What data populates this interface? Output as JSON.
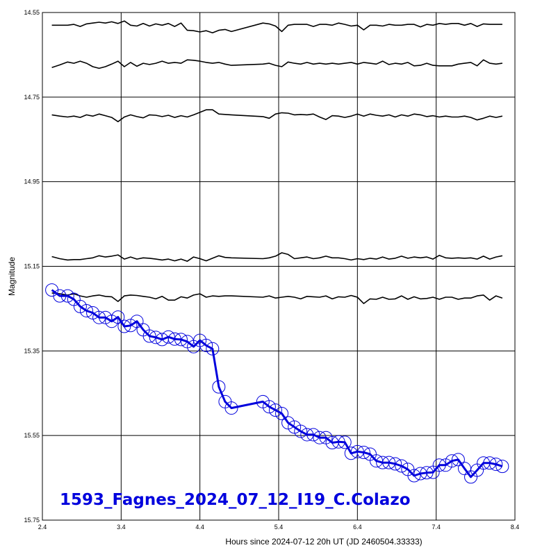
{
  "chart_data": {
    "type": "line",
    "xlabel": "Hours since 2024-07-12 20h UT (JD 2460504.33333)",
    "ylabel": "Magnitude",
    "xlim": [
      2.4,
      8.4
    ],
    "ylim": [
      14.55,
      15.75
    ],
    "y_inverted": true,
    "grid": true,
    "x_ticks": [
      "2.4",
      "3.4",
      "4.4",
      "5.4",
      "6.4",
      "7.4",
      "8.4"
    ],
    "y_ticks": [
      "14.55",
      "14.75",
      "14.95",
      "15.15",
      "15.35",
      "15.55",
      "15.75"
    ],
    "annotation": "1593_Fagnes_2024_07_12_I19_C.Colazo",
    "colors": {
      "target": "#0000dd",
      "comparison": "#000000",
      "grid": "#000000"
    },
    "x": [
      2.52,
      2.62,
      2.72,
      2.8,
      2.88,
      2.96,
      3.04,
      3.12,
      3.2,
      3.28,
      3.36,
      3.44,
      3.52,
      3.6,
      3.68,
      3.76,
      3.84,
      3.92,
      4.0,
      4.08,
      4.16,
      4.24,
      4.32,
      4.4,
      4.48,
      4.56,
      4.64,
      4.72,
      4.8,
      5.2,
      5.28,
      5.36,
      5.44,
      5.52,
      5.6,
      5.68,
      5.76,
      5.84,
      5.92,
      6.0,
      6.08,
      6.16,
      6.24,
      6.32,
      6.4,
      6.48,
      6.56,
      6.64,
      6.72,
      6.8,
      6.88,
      6.96,
      7.04,
      7.12,
      7.2,
      7.28,
      7.36,
      7.44,
      7.52,
      7.6,
      7.68,
      7.76,
      7.84,
      7.92,
      8.0,
      8.08,
      8.16,
      8.24
    ],
    "series": [
      {
        "role": "comparison",
        "values": [
          14.58,
          14.58,
          14.58,
          14.578,
          14.583,
          14.577,
          14.575,
          14.573,
          14.575,
          14.572,
          14.576,
          14.57,
          14.58,
          14.582,
          14.576,
          14.582,
          14.577,
          14.58,
          14.576,
          14.583,
          14.575,
          14.592,
          14.593,
          14.596,
          14.593,
          14.598,
          14.592,
          14.59,
          14.595,
          14.575,
          14.577,
          14.582,
          14.595,
          14.58,
          14.578,
          14.578,
          14.578,
          14.583,
          14.578,
          14.578,
          14.58,
          14.575,
          14.578,
          14.582,
          14.58,
          14.591,
          14.58,
          14.58,
          14.582,
          14.578,
          14.58,
          14.58,
          14.578,
          14.578,
          14.584,
          14.578,
          14.58,
          14.576,
          14.578,
          14.576,
          14.576,
          14.58,
          14.576,
          14.583,
          14.577,
          14.578,
          14.578,
          14.578
        ]
      },
      {
        "role": "comparison",
        "values": [
          14.68,
          14.674,
          14.667,
          14.67,
          14.665,
          14.67,
          14.678,
          14.682,
          14.678,
          14.672,
          14.665,
          14.678,
          14.668,
          14.677,
          14.67,
          14.673,
          14.67,
          14.665,
          14.67,
          14.668,
          14.67,
          14.662,
          14.663,
          14.665,
          14.668,
          14.67,
          14.668,
          14.672,
          14.675,
          14.672,
          14.67,
          14.675,
          14.678,
          14.667,
          14.67,
          14.672,
          14.668,
          14.672,
          14.67,
          14.672,
          14.67,
          14.672,
          14.67,
          14.668,
          14.672,
          14.668,
          14.67,
          14.672,
          14.665,
          14.673,
          14.67,
          14.672,
          14.668,
          14.676,
          14.675,
          14.67,
          14.675,
          14.676,
          14.676,
          14.676,
          14.672,
          14.67,
          14.668,
          14.676,
          14.662,
          14.67,
          14.672,
          14.67
        ]
      },
      {
        "role": "comparison",
        "values": [
          14.792,
          14.795,
          14.797,
          14.795,
          14.798,
          14.792,
          14.795,
          14.79,
          14.794,
          14.798,
          14.808,
          14.797,
          14.792,
          14.796,
          14.799,
          14.792,
          14.793,
          14.796,
          14.793,
          14.798,
          14.794,
          14.797,
          14.792,
          14.786,
          14.78,
          14.78,
          14.79,
          14.791,
          14.792,
          14.796,
          14.8,
          14.79,
          14.787,
          14.788,
          14.792,
          14.791,
          14.792,
          14.79,
          14.797,
          14.803,
          14.794,
          14.795,
          14.798,
          14.795,
          14.79,
          14.795,
          14.79,
          14.793,
          14.795,
          14.792,
          14.797,
          14.792,
          14.795,
          14.79,
          14.792,
          14.796,
          14.794,
          14.797,
          14.795,
          14.797,
          14.797,
          14.795,
          14.798,
          14.804,
          14.8,
          14.795,
          14.798,
          14.795
        ]
      },
      {
        "role": "comparison",
        "values": [
          15.127,
          15.132,
          15.135,
          15.134,
          15.134,
          15.132,
          15.13,
          15.125,
          15.128,
          15.126,
          15.123,
          15.133,
          15.128,
          15.133,
          15.13,
          15.131,
          15.133,
          15.135,
          15.133,
          15.137,
          15.133,
          15.138,
          15.128,
          15.132,
          15.137,
          15.131,
          15.125,
          15.129,
          15.13,
          15.132,
          15.13,
          15.126,
          15.118,
          15.122,
          15.132,
          15.13,
          15.128,
          15.132,
          15.13,
          15.126,
          15.13,
          15.13,
          15.132,
          15.135,
          15.132,
          15.134,
          15.131,
          15.133,
          15.128,
          15.133,
          15.131,
          15.126,
          15.131,
          15.128,
          15.13,
          15.128,
          15.133,
          15.124,
          15.13,
          15.131,
          15.13,
          15.131,
          15.13,
          15.133,
          15.126,
          15.133,
          15.128,
          15.125
        ]
      },
      {
        "role": "comparison",
        "values": [
          15.213,
          15.215,
          15.218,
          15.215,
          15.22,
          15.223,
          15.22,
          15.218,
          15.221,
          15.222,
          15.233,
          15.22,
          15.218,
          15.219,
          15.221,
          15.223,
          15.227,
          15.221,
          15.23,
          15.23,
          15.222,
          15.225,
          15.218,
          15.215,
          15.223,
          15.22,
          15.221,
          15.22,
          15.22,
          15.223,
          15.22,
          15.225,
          15.223,
          15.221,
          15.223,
          15.227,
          15.221,
          15.222,
          15.223,
          15.22,
          15.227,
          15.222,
          15.223,
          15.219,
          15.223,
          15.238,
          15.227,
          15.228,
          15.223,
          15.228,
          15.227,
          15.22,
          15.228,
          15.222,
          15.227,
          15.226,
          15.223,
          15.228,
          15.223,
          15.223,
          15.228,
          15.225,
          15.225,
          15.22,
          15.218,
          15.23,
          15.22,
          15.225
        ]
      },
      {
        "role": "target",
        "values": [
          15.206,
          15.22,
          15.22,
          15.228,
          15.245,
          15.255,
          15.26,
          15.271,
          15.271,
          15.28,
          15.27,
          15.292,
          15.29,
          15.28,
          15.3,
          15.315,
          15.318,
          15.323,
          15.317,
          15.322,
          15.323,
          15.328,
          15.34,
          15.325,
          15.337,
          15.345,
          15.435,
          15.47,
          15.485,
          15.47,
          15.482,
          15.49,
          15.498,
          15.52,
          15.53,
          15.54,
          15.548,
          15.548,
          15.555,
          15.555,
          15.567,
          15.565,
          15.566,
          15.592,
          15.588,
          15.59,
          15.594,
          15.61,
          15.614,
          15.614,
          15.617,
          15.622,
          15.63,
          15.645,
          15.64,
          15.638,
          15.637,
          15.62,
          15.62,
          15.61,
          15.607,
          15.628,
          15.648,
          15.632,
          15.615,
          15.615,
          15.618,
          15.623
        ]
      }
    ]
  }
}
